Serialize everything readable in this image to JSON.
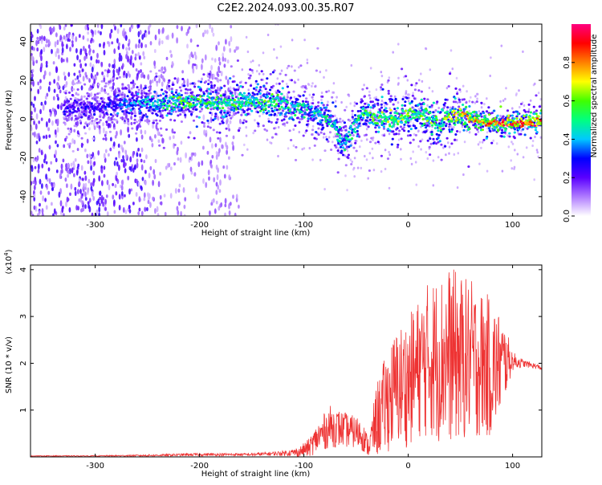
{
  "title": "C2E2.2024.093.00.35.R07",
  "colors": {
    "snr_line": "#ee3333",
    "background": "#ffffff",
    "axis": "#000000"
  },
  "chart_data": [
    {
      "type": "heatmap",
      "name": "spectrogram",
      "xlabel": "Height of straight line (km)",
      "ylabel": "Frequency (Hz)",
      "xlim": [
        -362,
        128
      ],
      "ylim": [
        -50,
        49
      ],
      "xticks": [
        -300,
        -200,
        -100,
        0,
        100
      ],
      "yticks": [
        -40,
        -20,
        0,
        20,
        40
      ],
      "colorbar": {
        "label": "Normalized spectral amplitude",
        "range": [
          0,
          1
        ],
        "ticks": [
          "0.0",
          "0.2",
          "0.4",
          "0.6",
          "0.8"
        ],
        "tick_values": [
          0,
          0.2,
          0.4,
          0.6,
          0.8
        ],
        "colormap": [
          "#ffffff",
          "#b07cff",
          "#5a00ff",
          "#0000ff",
          "#00c8ff",
          "#00ff80",
          "#40ff00",
          "#ffff00",
          "#ff8000",
          "#ff0000",
          "#ff0080"
        ]
      },
      "ridge": {
        "x": [
          -300,
          -270,
          -240,
          -220,
          -200,
          -180,
          -160,
          -140,
          -120,
          -100,
          -90,
          -80,
          -70,
          -62,
          -55,
          -45,
          -30,
          -20,
          -10,
          0,
          10,
          20,
          30,
          40,
          50,
          60,
          70,
          80,
          90,
          100,
          110,
          128
        ],
        "y": [
          6,
          8,
          8,
          9,
          8,
          8,
          9,
          9,
          8,
          5,
          3,
          1,
          -3,
          -12,
          -8,
          2,
          1,
          0,
          0,
          2,
          4,
          0,
          -3,
          1,
          2,
          0,
          -1,
          -2,
          -2,
          -2,
          -2,
          -1
        ],
        "peak_amplitude": [
          0.25,
          0.35,
          0.45,
          0.55,
          0.55,
          0.5,
          0.55,
          0.55,
          0.5,
          0.45,
          0.45,
          0.45,
          0.5,
          0.45,
          0.45,
          0.5,
          0.55,
          0.6,
          0.6,
          0.6,
          0.6,
          0.6,
          0.6,
          0.65,
          0.7,
          0.7,
          0.75,
          0.8,
          0.85,
          0.85,
          0.85,
          0.85
        ]
      }
    },
    {
      "type": "line",
      "name": "snr",
      "xlabel": "Height of straight line (km)",
      "ylabel": "SNR (10 * v/v)",
      "scale_note": "(x10",
      "scale_exp": "4",
      "scale_close": ")",
      "xlim": [
        -362,
        128
      ],
      "ylim": [
        0,
        4.1
      ],
      "xticks": [
        -300,
        -200,
        -100,
        0,
        100
      ],
      "yticks": [
        1,
        2,
        3,
        4
      ],
      "series": [
        {
          "x": [
            -362,
            -300,
            -250,
            -200,
            -150,
            -120,
            -105,
            -95,
            -85,
            -75,
            -65,
            -55,
            -45,
            -38,
            -30,
            -20,
            -10,
            0,
            10,
            20,
            30,
            40,
            50,
            60,
            70,
            80,
            90,
            95,
            100,
            110,
            120,
            128
          ],
          "y": [
            0.02,
            0.02,
            0.03,
            0.05,
            0.05,
            0.08,
            0.1,
            0.2,
            0.45,
            0.65,
            0.6,
            0.55,
            0.5,
            0.2,
            0.8,
            1.2,
            1.5,
            1.6,
            1.9,
            2.1,
            2.1,
            2.2,
            2.1,
            2.1,
            2.0,
            1.9,
            2.0,
            2.05,
            2.05,
            2.0,
            1.95,
            1.9
          ],
          "spread": [
            0.01,
            0.01,
            0.02,
            0.03,
            0.03,
            0.05,
            0.1,
            0.2,
            0.35,
            0.45,
            0.4,
            0.35,
            0.35,
            0.2,
            0.8,
            1.1,
            1.3,
            1.4,
            1.5,
            1.7,
            1.8,
            1.9,
            1.8,
            1.7,
            1.6,
            1.5,
            1.0,
            0.6,
            0.2,
            0.08,
            0.06,
            0.05
          ],
          "max": 4.1
        }
      ]
    }
  ]
}
